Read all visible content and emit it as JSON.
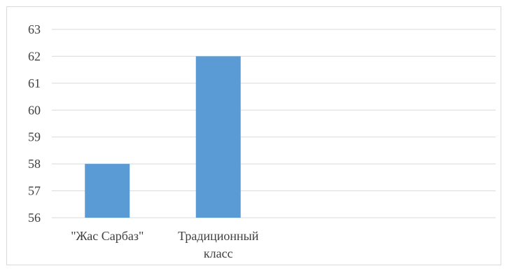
{
  "chart_data": {
    "type": "bar",
    "title": "",
    "xlabel": "",
    "ylabel": "",
    "categories": [
      "\"Жас Сарбаз\"",
      "Традиционный класс"
    ],
    "category_label_lines": [
      [
        "\"Жас Сарбаз\""
      ],
      [
        "Традиционный",
        "класс"
      ]
    ],
    "values": [
      58,
      62
    ],
    "ylim": [
      56,
      63
    ],
    "yticks": [
      "56",
      "57",
      "58",
      "59",
      "60",
      "61",
      "62",
      "63"
    ],
    "grid": true,
    "legend": "none",
    "bar_color": "#5b9bd5",
    "grid_color": "#d9d9d9"
  }
}
